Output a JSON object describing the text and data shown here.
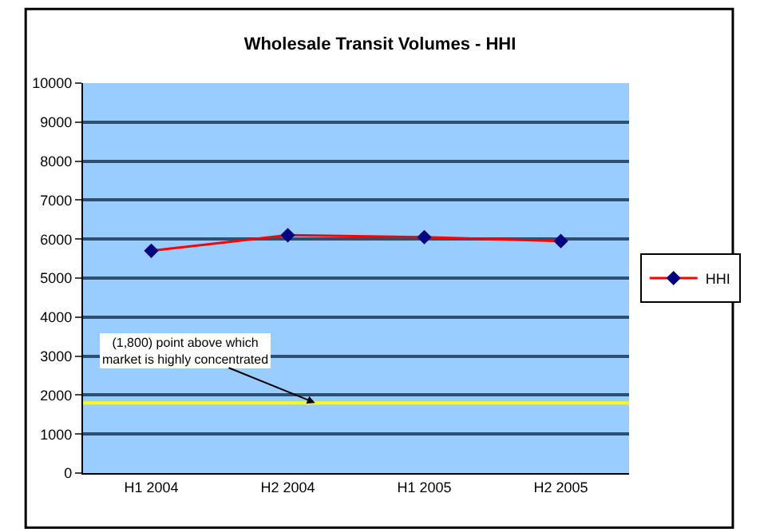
{
  "chart_data": {
    "type": "line",
    "title": "Wholesale Transit Volumes - HHI",
    "categories": [
      "H1 2004",
      "H2 2004",
      "H1 2005",
      "H2 2005"
    ],
    "series": [
      {
        "name": "HHI",
        "color": "#ff0000",
        "values": [
          5700,
          6100,
          6050,
          5950
        ]
      }
    ],
    "ylim": [
      0,
      10000
    ],
    "yticks": [
      0,
      1000,
      2000,
      3000,
      4000,
      5000,
      6000,
      7000,
      8000,
      9000,
      10000
    ],
    "grid": "y",
    "legend": "right",
    "marker": "diamond",
    "line_style": "solid",
    "ref_lines": [
      {
        "axis": "y",
        "value": 1800,
        "label": "(1,800) point above which market is highly concentrated",
        "color": "#ffff00"
      }
    ]
  }
}
